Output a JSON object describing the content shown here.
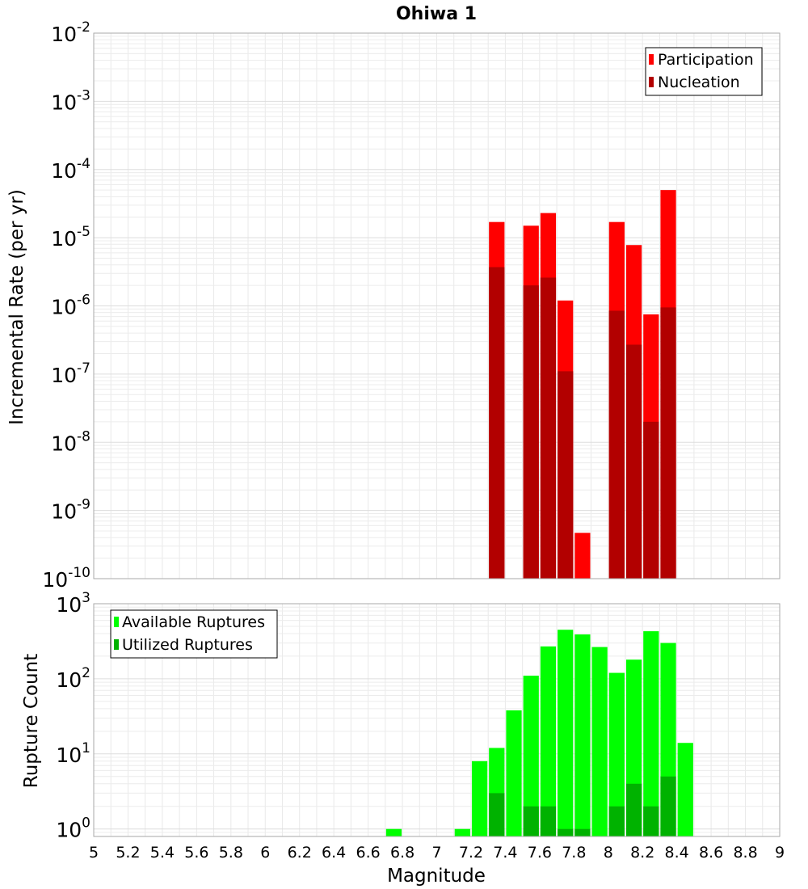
{
  "chart_data": [
    {
      "type": "bar",
      "scale": "log",
      "title": "Ohiwa 1",
      "ylabel": "Incremental Rate (per yr)",
      "xlabel": "",
      "xlim": [
        5,
        9
      ],
      "ylim_exp": [
        -10,
        -2
      ],
      "bin_width": 0.1,
      "legend_position": "top-right",
      "series": [
        {
          "name": "Participation",
          "color": "#ff0000",
          "x": [
            7.35,
            7.55,
            7.65,
            7.75,
            7.85,
            8.05,
            8.15,
            8.25,
            8.35
          ],
          "values": [
            1.7e-05,
            1.5e-05,
            2.3e-05,
            1.2e-06,
            4.7e-10,
            1.7e-05,
            7.8e-06,
            7.5e-07,
            5e-05
          ]
        },
        {
          "name": "Nucleation",
          "color": "#b20000",
          "x": [
            7.35,
            7.55,
            7.65,
            7.75,
            8.05,
            8.15,
            8.25,
            8.35
          ],
          "values": [
            3.7e-06,
            2e-06,
            2.6e-06,
            1.1e-07,
            8.5e-07,
            2.7e-07,
            2e-08,
            9.5e-07
          ]
        }
      ]
    },
    {
      "type": "bar",
      "scale": "log",
      "title": "",
      "ylabel": "Rupture Count",
      "xlabel": "Magnitude",
      "xlim": [
        5,
        9
      ],
      "ylim_exp": [
        -0.1,
        3
      ],
      "bin_width": 0.1,
      "legend_position": "top-left",
      "x_ticks": [
        "5",
        "5.2",
        "5.4",
        "5.6",
        "5.8",
        "6",
        "6.2",
        "6.4",
        "6.6",
        "6.8",
        "7",
        "7.2",
        "7.4",
        "7.6",
        "7.8",
        "8",
        "8.2",
        "8.4",
        "8.6",
        "8.8",
        "9"
      ],
      "series": [
        {
          "name": "Available Ruptures",
          "color": "#00ff00",
          "x": [
            6.75,
            7.15,
            7.25,
            7.35,
            7.45,
            7.55,
            7.65,
            7.75,
            7.85,
            7.95,
            8.05,
            8.15,
            8.25,
            8.35,
            8.45
          ],
          "values": [
            1,
            1,
            8,
            12,
            38,
            110,
            270,
            450,
            390,
            265,
            120,
            180,
            430,
            300,
            14
          ]
        },
        {
          "name": "Utilized Ruptures",
          "color": "#00b200",
          "x": [
            7.35,
            7.55,
            7.65,
            7.75,
            7.85,
            8.05,
            8.15,
            8.25,
            8.35
          ],
          "values": [
            3,
            2,
            2,
            1,
            1,
            2,
            4,
            2,
            5
          ]
        }
      ]
    }
  ]
}
